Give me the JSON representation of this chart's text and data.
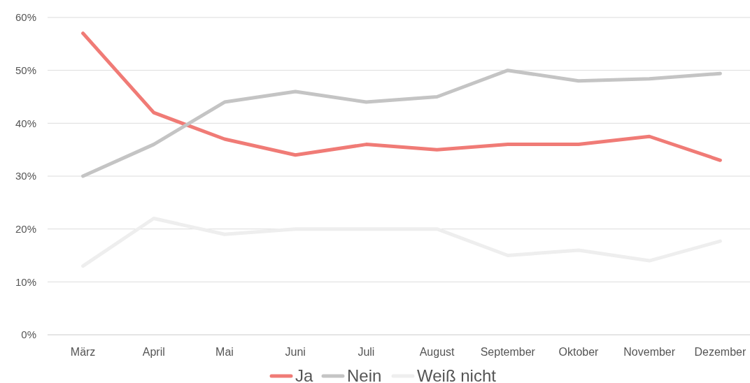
{
  "chart_data": {
    "type": "line",
    "categories": [
      "März",
      "April",
      "Mai",
      "Juni",
      "Juli",
      "August",
      "September",
      "Oktober",
      "November",
      "Dezember"
    ],
    "series": [
      {
        "name": "Ja",
        "color": "#f07b76",
        "values": [
          57,
          42,
          37,
          34,
          36,
          35,
          36,
          36,
          37.5,
          33
        ]
      },
      {
        "name": "Nein",
        "color": "#c4c4c4",
        "values": [
          30,
          36,
          44,
          46,
          44,
          45,
          50,
          48,
          48.4,
          49.4
        ]
      },
      {
        "name": "Weiß nicht",
        "color": "#eeeeee",
        "values": [
          13,
          22,
          19,
          20,
          20,
          20,
          15,
          16,
          14,
          17.7
        ]
      }
    ],
    "ylim": [
      0,
      60
    ],
    "yticks": [
      {
        "value": 0,
        "label": "0%"
      },
      {
        "value": 10,
        "label": "10%"
      },
      {
        "value": 20,
        "label": "20%"
      },
      {
        "value": 30,
        "label": "30%"
      },
      {
        "value": 40,
        "label": "40%"
      },
      {
        "value": 50,
        "label": "50%"
      },
      {
        "value": 60,
        "label": "60%"
      }
    ],
    "grid": "y",
    "legend": "bottom",
    "line_style": "solid"
  }
}
